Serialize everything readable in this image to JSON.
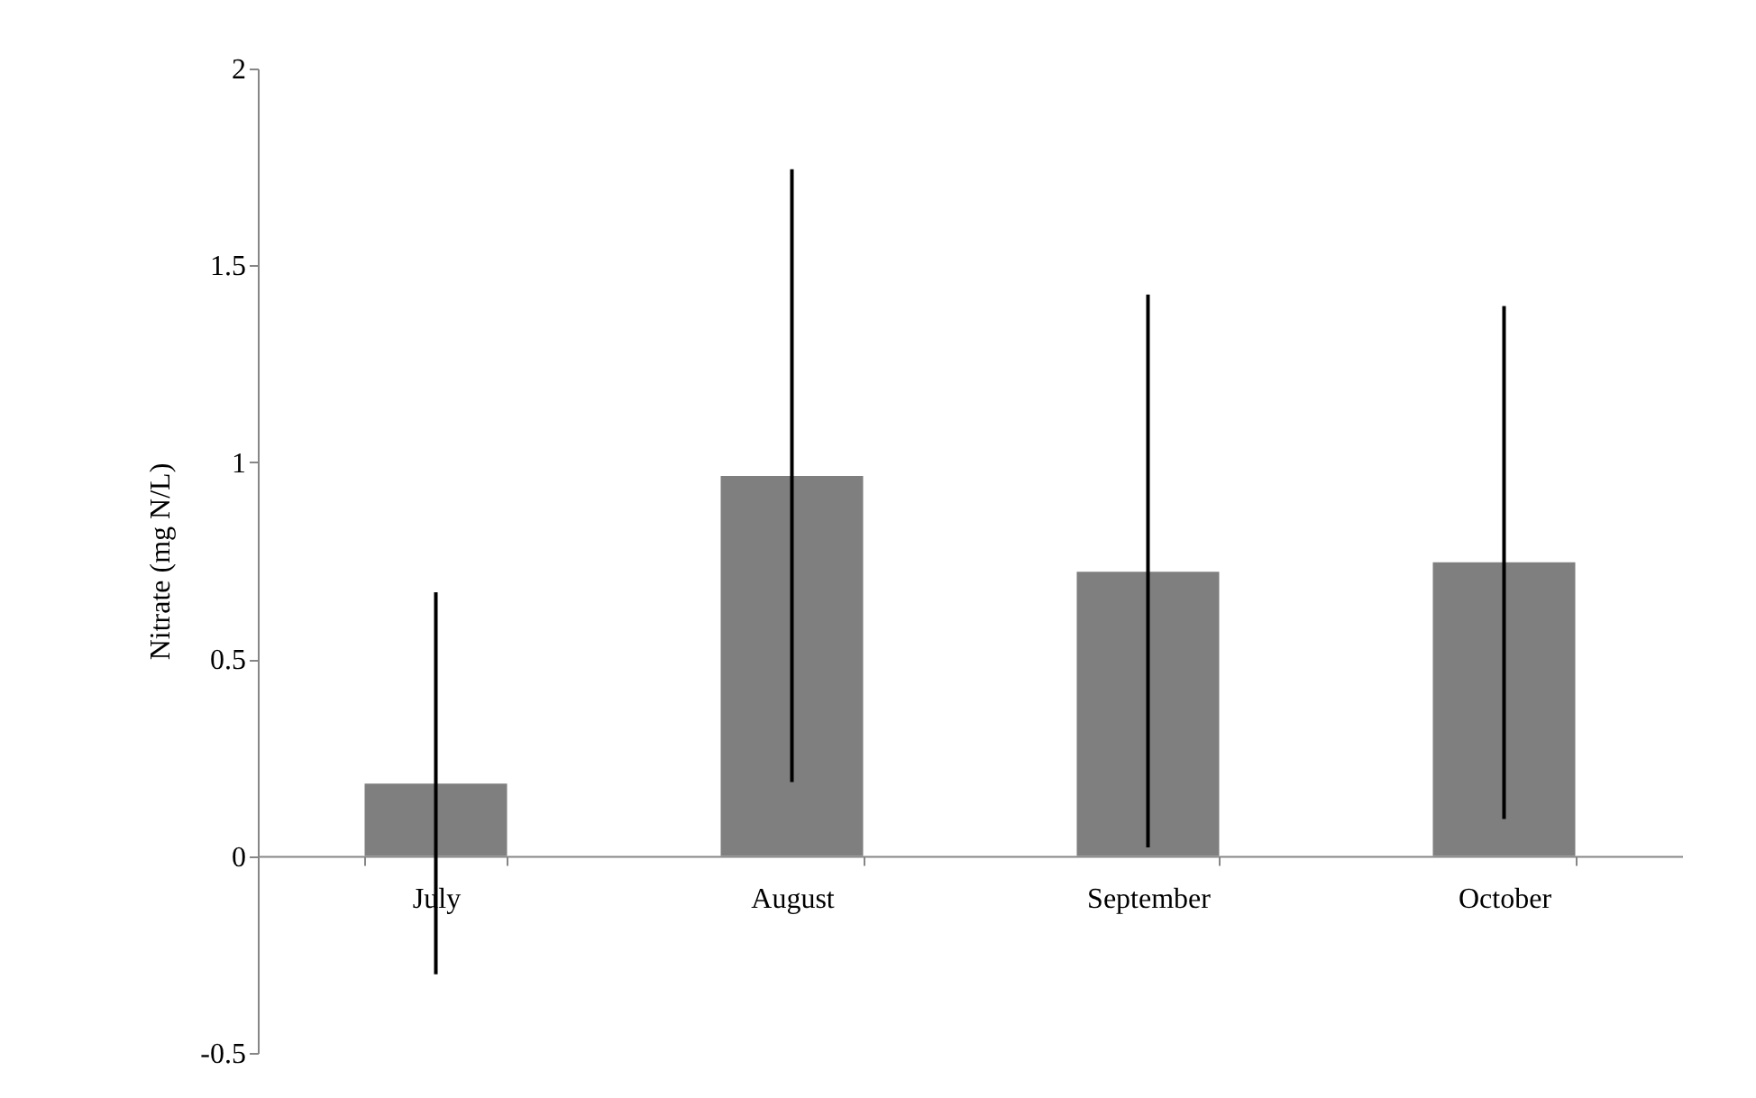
{
  "chart_data": {
    "type": "bar",
    "ylabel": "Nitrate (mg N/L)",
    "categories": [
      "July",
      "August",
      "September",
      "October"
    ],
    "values": [
      0.184,
      0.965,
      0.722,
      0.746
    ],
    "errors": [
      [
        -0.3,
        0.67
      ],
      [
        0.188,
        1.744
      ],
      [
        0.022,
        1.426
      ],
      [
        0.094,
        1.397
      ]
    ],
    "color": "#7f7f7f",
    "ylim": [
      -0.5,
      2
    ],
    "yticks": [
      -0.5,
      0,
      0.5,
      1,
      1.5,
      2
    ],
    "grid": false
  }
}
